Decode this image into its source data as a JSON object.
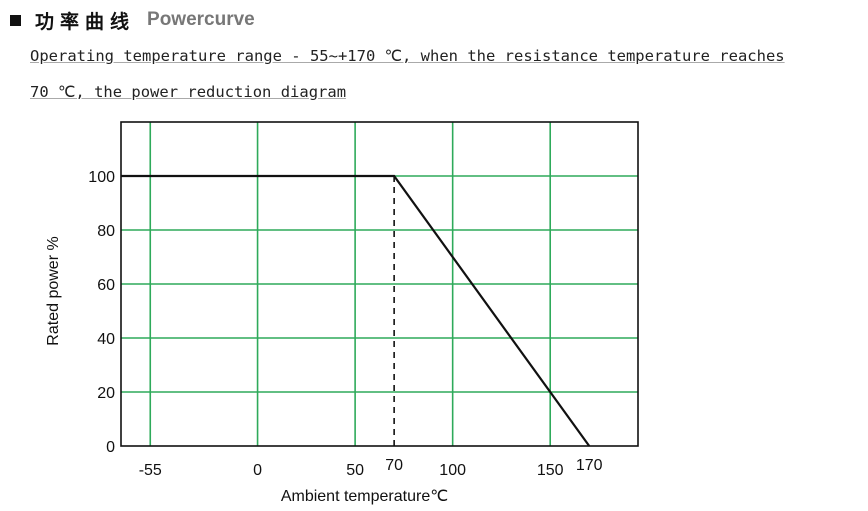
{
  "header": {
    "title_cn": "功率曲线",
    "title_en": "Powercurve"
  },
  "description": {
    "line1": "Operating temperature range - 55~+170 ℃, when the resistance temperature reaches",
    "line2": "70 ℃, the power reduction diagram"
  },
  "colors": {
    "grid": "#2eaa5a",
    "frame": "#111111",
    "curve": "#111111"
  },
  "chart_data": {
    "type": "line",
    "xlabel": "Ambient temperature℃",
    "ylabel": "Rated power %",
    "x_ticks": [
      -55,
      0,
      50,
      70,
      100,
      150,
      170
    ],
    "x_tick_labels": [
      "-55",
      "0",
      "50",
      "70",
      "100",
      "150",
      "170"
    ],
    "x_gridlines": [
      -55,
      0,
      50,
      100,
      150
    ],
    "y_ticks": [
      0,
      20,
      40,
      60,
      80,
      100
    ],
    "y_tick_labels": [
      "0",
      "20",
      "40",
      "60",
      "80",
      "100"
    ],
    "xlim": [
      -70,
      195
    ],
    "ylim": [
      0,
      120
    ],
    "grid": true,
    "series": [
      {
        "x": [
          -70,
          70,
          170
        ],
        "y": [
          100,
          100,
          0
        ]
      }
    ],
    "reference_lines": [
      {
        "x": 70,
        "y_from": 0,
        "y_to": 100,
        "style": "dashed"
      }
    ]
  }
}
